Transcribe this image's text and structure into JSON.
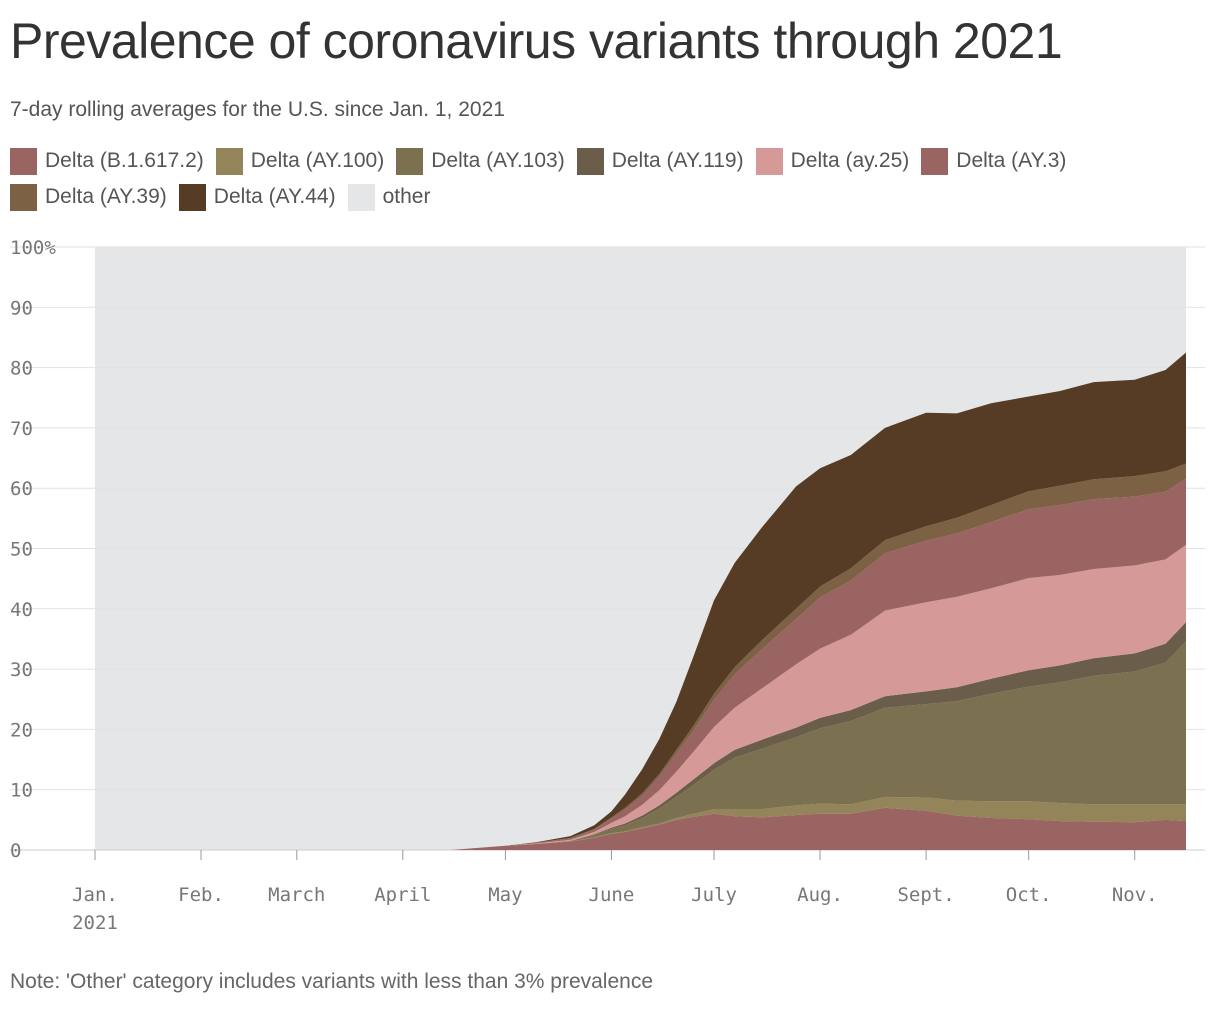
{
  "title": "Prevalence of coronavirus variants through 2021",
  "subtitle": "7-day rolling averages for the U.S. since Jan. 1, 2021",
  "note": "Note: 'Other' category includes variants with less than 3% prevalence",
  "chart_data": {
    "type": "area",
    "stacked": true,
    "x_unit": "date",
    "x": [
      "2021-01-01",
      "2021-04-15",
      "2021-05-01",
      "2021-05-10",
      "2021-05-20",
      "2021-05-27",
      "2021-06-01",
      "2021-06-05",
      "2021-06-10",
      "2021-06-15",
      "2021-06-20",
      "2021-06-25",
      "2021-07-01",
      "2021-07-07",
      "2021-07-15",
      "2021-07-25",
      "2021-08-01",
      "2021-08-10",
      "2021-08-20",
      "2021-09-01",
      "2021-09-10",
      "2021-09-20",
      "2021-10-01",
      "2021-10-10",
      "2021-10-20",
      "2021-11-01",
      "2021-11-10",
      "2021-11-16"
    ],
    "series": [
      {
        "name": "Delta (B.1.617.2)",
        "color": "#9a6462",
        "values": [
          0,
          0,
          0.7,
          1.0,
          1.4,
          2.0,
          2.7,
          3.0,
          3.6,
          4.2,
          5.0,
          5.5,
          6.0,
          5.6,
          5.4,
          5.8,
          6.0,
          6.0,
          7.0,
          6.5,
          5.7,
          5.3,
          5.1,
          4.8,
          4.7,
          4.6,
          5.0,
          4.8
        ]
      },
      {
        "name": "Delta (AY.100)",
        "color": "#948459",
        "values": [
          0,
          0,
          0,
          0,
          0,
          0.1,
          0.1,
          0.1,
          0.2,
          0.2,
          0.3,
          0.5,
          0.8,
          1.2,
          1.4,
          1.6,
          1.7,
          1.6,
          1.8,
          2.2,
          2.5,
          2.8,
          3.0,
          3.0,
          2.9,
          3.0,
          2.6,
          2.8
        ]
      },
      {
        "name": "Delta (AY.103)",
        "color": "#7b7150",
        "values": [
          0,
          0,
          0,
          0,
          0.1,
          0.4,
          0.7,
          1.0,
          1.5,
          2.5,
          3.5,
          4.8,
          6.5,
          8.5,
          10.0,
          11.3,
          12.5,
          13.8,
          14.8,
          15.5,
          16.5,
          17.8,
          19.0,
          20.0,
          21.3,
          22.0,
          23.5,
          27.0
        ]
      },
      {
        "name": "Delta (AY.119)",
        "color": "#6a5d4a",
        "values": [
          0,
          0,
          0,
          0,
          0,
          0.1,
          0.2,
          0.3,
          0.4,
          0.5,
          0.7,
          0.9,
          1.1,
          1.3,
          1.5,
          1.6,
          1.7,
          1.8,
          1.9,
          2.1,
          2.3,
          2.5,
          2.7,
          2.8,
          2.9,
          3.0,
          3.1,
          3.2
        ]
      },
      {
        "name": "Delta (ay.25)",
        "color": "#d59a97",
        "values": [
          0,
          0,
          0,
          0.1,
          0.2,
          0.4,
          0.8,
          1.2,
          1.8,
          2.5,
          3.5,
          4.6,
          6.0,
          7.0,
          8.5,
          10.5,
          11.5,
          12.5,
          14.2,
          14.8,
          15.0,
          15.0,
          15.3,
          15.0,
          14.8,
          14.6,
          14.0,
          12.8
        ]
      },
      {
        "name": "Delta (AY.3)",
        "color": "#9a6462",
        "values": [
          0,
          0,
          0,
          0.1,
          0.2,
          0.4,
          0.7,
          1.1,
          1.5,
          2.2,
          3.0,
          3.5,
          4.5,
          5.5,
          6.5,
          7.5,
          8.5,
          9.0,
          9.5,
          10.2,
          10.5,
          11.0,
          11.4,
          11.6,
          11.6,
          11.4,
          11.2,
          11.0
        ]
      },
      {
        "name": "Delta (AY.39)",
        "color": "#7d6145",
        "values": [
          0,
          0,
          0,
          0,
          0.1,
          0.1,
          0.2,
          0.3,
          0.4,
          0.5,
          0.6,
          0.8,
          1.0,
          1.2,
          1.5,
          1.7,
          1.8,
          2.0,
          2.2,
          2.4,
          2.6,
          2.8,
          3.0,
          3.2,
          3.3,
          3.4,
          3.4,
          2.5
        ]
      },
      {
        "name": "Delta (AY.44)",
        "color": "#563c25",
        "values": [
          0,
          0,
          0,
          0.1,
          0.3,
          0.6,
          1.0,
          2.2,
          4.0,
          5.8,
          8.0,
          11.5,
          15.5,
          17.3,
          18.7,
          20.3,
          19.6,
          18.8,
          18.6,
          18.8,
          17.3,
          16.9,
          15.7,
          15.7,
          16.1,
          16.0,
          16.8,
          18.4
        ]
      }
    ],
    "other": {
      "name": "other",
      "color": "#e5e6e8"
    },
    "ylim": [
      0,
      100
    ],
    "yticks": [
      0,
      10,
      20,
      30,
      40,
      50,
      60,
      70,
      80,
      90,
      100
    ],
    "ytick_labels": [
      "0",
      "10",
      "20",
      "30",
      "40",
      "50",
      "60",
      "70",
      "80",
      "90",
      "100%"
    ],
    "xlim": [
      "2021-01-01",
      "2021-11-16"
    ],
    "xticks": [
      {
        "date": "2021-01-01",
        "label": "Jan.",
        "sublabel": "2021"
      },
      {
        "date": "2021-02-01",
        "label": "Feb.",
        "sublabel": ""
      },
      {
        "date": "2021-03-01",
        "label": "March",
        "sublabel": ""
      },
      {
        "date": "2021-04-01",
        "label": "April",
        "sublabel": ""
      },
      {
        "date": "2021-05-01",
        "label": "May",
        "sublabel": ""
      },
      {
        "date": "2021-06-01",
        "label": "June",
        "sublabel": ""
      },
      {
        "date": "2021-07-01",
        "label": "July",
        "sublabel": ""
      },
      {
        "date": "2021-08-01",
        "label": "Aug.",
        "sublabel": ""
      },
      {
        "date": "2021-09-01",
        "label": "Sept.",
        "sublabel": ""
      },
      {
        "date": "2021-10-01",
        "label": "Oct.",
        "sublabel": ""
      },
      {
        "date": "2021-11-01",
        "label": "Nov.",
        "sublabel": ""
      }
    ],
    "grid": true,
    "legend_position": "top"
  }
}
